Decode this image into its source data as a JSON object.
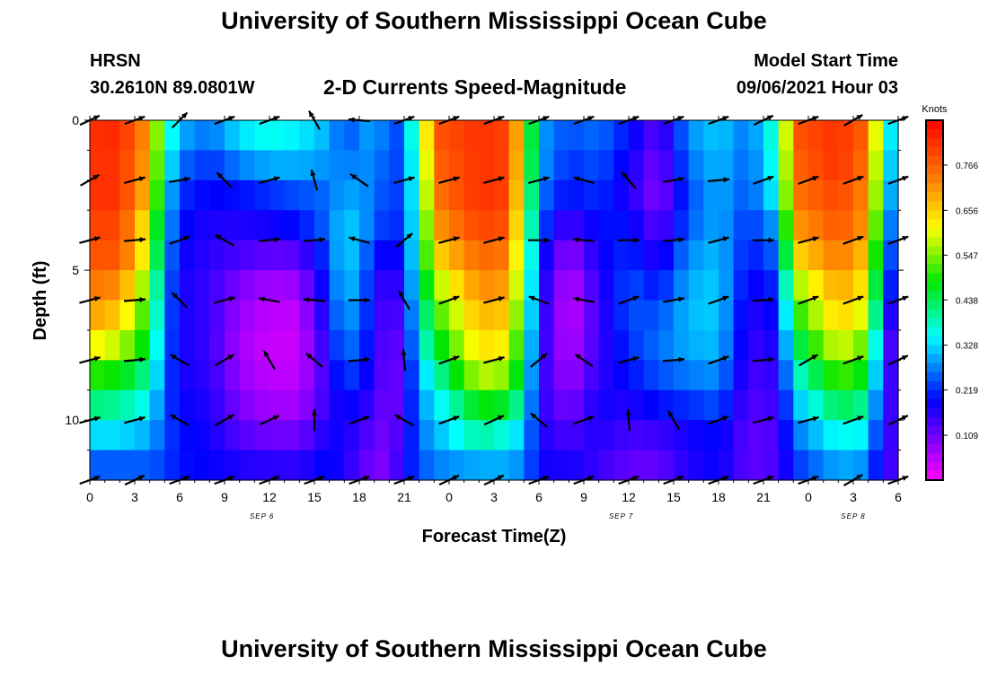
{
  "page": {
    "title_top": "University of Southern Mississippi Ocean Cube",
    "title_bottom": "University of Southern Mississippi Ocean Cube"
  },
  "header": {
    "station": "HRSN",
    "coords": "30.2610N  89.0801W",
    "plot_title": "2-D Currents Speed-Magnitude",
    "model_label": "Model Start Time",
    "model_time": "09/06/2021 Hour 03"
  },
  "chart_data": {
    "type": "heatmap",
    "title": "2-D Currents Speed-Magnitude",
    "xlabel": "Forecast Time(Z)",
    "ylabel": "Depth (ft)",
    "x_range_hours": [
      0,
      54
    ],
    "ylim": [
      0,
      12
    ],
    "x_tick_labels": [
      "0",
      "3",
      "6",
      "9",
      "12",
      "15",
      "18",
      "21",
      "0",
      "3",
      "6",
      "9",
      "12",
      "15",
      "18",
      "21",
      "0",
      "3",
      "6"
    ],
    "y_tick_labels": [
      "0",
      "5",
      "10"
    ],
    "y_tick_values": [
      0,
      5,
      10
    ],
    "date_labels": [
      {
        "text": "SEP 6",
        "hour": 11.5
      },
      {
        "text": "SEP 7",
        "hour": 35.5
      },
      {
        "text": "SEP 8",
        "hour": 51
      }
    ],
    "colorbar": {
      "unit": "Knots",
      "min": 0.0,
      "max": 0.875,
      "tick_labels": [
        "0.766",
        "0.656",
        "0.547",
        "0.438",
        "0.328",
        "0.219",
        "0.109"
      ],
      "tick_values": [
        0.766,
        0.656,
        0.547,
        0.438,
        0.328,
        0.219,
        0.109
      ]
    },
    "speed_profile_by_hour": [
      {
        "hour": 0,
        "values": [
          0.82,
          0.82,
          0.82,
          0.8,
          0.78,
          0.74,
          0.7,
          0.62,
          0.5,
          0.42,
          0.33,
          0.25
        ]
      },
      {
        "hour": 2,
        "values": [
          0.83,
          0.82,
          0.82,
          0.8,
          0.78,
          0.72,
          0.66,
          0.58,
          0.48,
          0.4,
          0.33,
          0.25
        ]
      },
      {
        "hour": 4,
        "values": [
          0.7,
          0.68,
          0.66,
          0.6,
          0.58,
          0.52,
          0.48,
          0.45,
          0.4,
          0.35,
          0.3,
          0.25
        ]
      },
      {
        "hour": 5,
        "values": [
          0.4,
          0.38,
          0.35,
          0.33,
          0.3,
          0.28,
          0.27,
          0.26,
          0.25,
          0.24,
          0.24,
          0.23
        ]
      },
      {
        "hour": 6,
        "values": [
          0.3,
          0.26,
          0.22,
          0.2,
          0.19,
          0.18,
          0.18,
          0.18,
          0.18,
          0.19,
          0.2,
          0.2
        ]
      },
      {
        "hour": 8,
        "values": [
          0.26,
          0.22,
          0.19,
          0.17,
          0.16,
          0.15,
          0.15,
          0.15,
          0.16,
          0.17,
          0.18,
          0.19
        ]
      },
      {
        "hour": 10,
        "values": [
          0.33,
          0.27,
          0.2,
          0.17,
          0.14,
          0.1,
          0.08,
          0.07,
          0.08,
          0.1,
          0.13,
          0.17
        ]
      },
      {
        "hour": 12,
        "values": [
          0.36,
          0.3,
          0.22,
          0.18,
          0.12,
          0.07,
          0.05,
          0.04,
          0.05,
          0.07,
          0.11,
          0.16
        ]
      },
      {
        "hour": 14,
        "values": [
          0.34,
          0.3,
          0.24,
          0.2,
          0.13,
          0.08,
          0.05,
          0.04,
          0.05,
          0.07,
          0.11,
          0.16
        ]
      },
      {
        "hour": 16,
        "values": [
          0.3,
          0.28,
          0.26,
          0.26,
          0.24,
          0.22,
          0.2,
          0.18,
          0.16,
          0.16,
          0.18,
          0.2
        ]
      },
      {
        "hour": 17,
        "values": [
          0.24,
          0.27,
          0.3,
          0.33,
          0.34,
          0.33,
          0.31,
          0.28,
          0.24,
          0.2,
          0.18,
          0.17
        ]
      },
      {
        "hour": 19,
        "values": [
          0.3,
          0.28,
          0.27,
          0.26,
          0.22,
          0.2,
          0.19,
          0.18,
          0.17,
          0.15,
          0.12,
          0.1
        ]
      },
      {
        "hour": 20,
        "values": [
          0.24,
          0.23,
          0.22,
          0.2,
          0.16,
          0.12,
          0.1,
          0.09,
          0.09,
          0.09,
          0.1,
          0.1
        ]
      },
      {
        "hour": 21,
        "values": [
          0.24,
          0.24,
          0.24,
          0.24,
          0.22,
          0.2,
          0.18,
          0.16,
          0.15,
          0.15,
          0.16,
          0.18
        ]
      },
      {
        "hour": 22,
        "values": [
          0.48,
          0.44,
          0.42,
          0.4,
          0.4,
          0.38,
          0.36,
          0.34,
          0.3,
          0.28,
          0.26,
          0.24
        ]
      },
      {
        "hour": 23,
        "values": [
          0.78,
          0.76,
          0.74,
          0.7,
          0.64,
          0.56,
          0.5,
          0.45,
          0.38,
          0.33,
          0.3,
          0.27
        ]
      },
      {
        "hour": 26,
        "values": [
          0.82,
          0.82,
          0.82,
          0.8,
          0.76,
          0.72,
          0.68,
          0.64,
          0.58,
          0.48,
          0.4,
          0.3
        ]
      },
      {
        "hour": 28,
        "values": [
          0.8,
          0.8,
          0.8,
          0.78,
          0.74,
          0.7,
          0.66,
          0.62,
          0.55,
          0.46,
          0.36,
          0.3
        ]
      },
      {
        "hour": 29,
        "values": [
          0.6,
          0.58,
          0.55,
          0.52,
          0.5,
          0.48,
          0.45,
          0.42,
          0.4,
          0.36,
          0.31,
          0.27
        ]
      },
      {
        "hour": 30,
        "values": [
          0.3,
          0.3,
          0.28,
          0.26,
          0.22,
          0.2,
          0.19,
          0.18,
          0.17,
          0.17,
          0.18,
          0.19
        ]
      },
      {
        "hour": 31,
        "values": [
          0.26,
          0.25,
          0.22,
          0.18,
          0.14,
          0.12,
          0.11,
          0.11,
          0.12,
          0.13,
          0.15,
          0.17
        ]
      },
      {
        "hour": 32,
        "values": [
          0.24,
          0.22,
          0.2,
          0.14,
          0.08,
          0.05,
          0.04,
          0.05,
          0.07,
          0.1,
          0.14,
          0.18
        ]
      },
      {
        "hour": 34,
        "values": [
          0.26,
          0.24,
          0.22,
          0.2,
          0.18,
          0.16,
          0.15,
          0.15,
          0.16,
          0.18,
          0.17,
          0.15
        ]
      },
      {
        "hour": 36,
        "values": [
          0.2,
          0.18,
          0.17,
          0.2,
          0.22,
          0.24,
          0.24,
          0.22,
          0.2,
          0.17,
          0.14,
          0.12
        ]
      },
      {
        "hour": 38,
        "values": [
          0.12,
          0.1,
          0.09,
          0.12,
          0.16,
          0.2,
          0.24,
          0.26,
          0.24,
          0.2,
          0.15,
          0.12
        ]
      },
      {
        "hour": 40,
        "values": [
          0.28,
          0.26,
          0.24,
          0.25,
          0.28,
          0.3,
          0.31,
          0.3,
          0.27,
          0.22,
          0.18,
          0.17
        ]
      },
      {
        "hour": 42,
        "values": [
          0.32,
          0.31,
          0.3,
          0.3,
          0.31,
          0.32,
          0.32,
          0.31,
          0.28,
          0.24,
          0.2,
          0.19
        ]
      },
      {
        "hour": 44,
        "values": [
          0.26,
          0.25,
          0.24,
          0.22,
          0.2,
          0.18,
          0.16,
          0.15,
          0.14,
          0.13,
          0.12,
          0.12
        ]
      },
      {
        "hour": 46,
        "values": [
          0.4,
          0.38,
          0.36,
          0.3,
          0.26,
          0.22,
          0.2,
          0.18,
          0.16,
          0.15,
          0.14,
          0.14
        ]
      },
      {
        "hour": 47,
        "values": [
          0.78,
          0.76,
          0.74,
          0.7,
          0.64,
          0.55,
          0.48,
          0.42,
          0.36,
          0.3,
          0.26,
          0.22
        ]
      },
      {
        "hour": 50,
        "values": [
          0.82,
          0.82,
          0.8,
          0.78,
          0.74,
          0.7,
          0.66,
          0.6,
          0.52,
          0.44,
          0.36,
          0.3
        ]
      },
      {
        "hour": 52,
        "values": [
          0.76,
          0.74,
          0.72,
          0.7,
          0.66,
          0.62,
          0.58,
          0.52,
          0.46,
          0.4,
          0.34,
          0.28
        ]
      },
      {
        "hour": 53,
        "values": [
          0.44,
          0.42,
          0.4,
          0.36,
          0.32,
          0.28,
          0.24,
          0.2,
          0.18,
          0.16,
          0.15,
          0.14
        ]
      },
      {
        "hour": 54,
        "values": [
          0.24,
          0.22,
          0.2,
          0.18,
          0.16,
          0.14,
          0.1,
          0.08,
          0.12,
          0.14,
          0.15,
          0.15
        ]
      }
    ],
    "vector_depths_ft": [
      0,
      2,
      4,
      6,
      8,
      10,
      12
    ],
    "vector_hours": [
      0,
      3,
      6,
      9,
      12,
      15,
      18,
      21,
      24,
      27,
      30,
      33,
      36,
      39,
      42,
      45,
      48,
      51,
      54
    ],
    "vector_directions_deg": [
      [
        25,
        20,
        45,
        20,
        20,
        120,
        175,
        20,
        20,
        20,
        20,
        20,
        20,
        20,
        20,
        25,
        20,
        30,
        20
      ],
      [
        30,
        15,
        10,
        135,
        15,
        105,
        145,
        15,
        15,
        15,
        15,
        165,
        130,
        10,
        5,
        20,
        20,
        20,
        20
      ],
      [
        15,
        5,
        20,
        150,
        5,
        5,
        165,
        40,
        15,
        15,
        0,
        175,
        0,
        5,
        15,
        0,
        15,
        20,
        20
      ],
      [
        15,
        5,
        135,
        15,
        170,
        175,
        0,
        120,
        20,
        15,
        160,
        170,
        20,
        10,
        20,
        5,
        20,
        20,
        20
      ],
      [
        15,
        5,
        150,
        30,
        120,
        140,
        5,
        95,
        20,
        15,
        40,
        145,
        15,
        5,
        20,
        5,
        30,
        20,
        25
      ],
      [
        15,
        15,
        150,
        30,
        25,
        90,
        20,
        150,
        20,
        25,
        140,
        20,
        95,
        120,
        20,
        15,
        15,
        20,
        25
      ],
      [
        20,
        25,
        20,
        20,
        20,
        20,
        20,
        20,
        25,
        25,
        20,
        20,
        20,
        20,
        20,
        20,
        20,
        30,
        20
      ]
    ]
  }
}
